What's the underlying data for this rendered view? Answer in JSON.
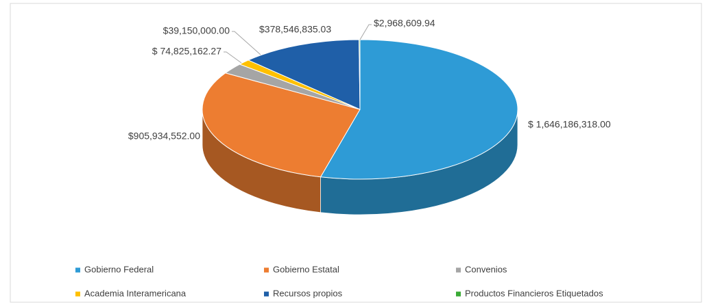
{
  "chart_data": {
    "type": "pie",
    "categories": [
      "Gobierno Federal",
      "Gobierno Estatal",
      "Convenios",
      "Academia Interamericana",
      "Recursos propios",
      "Productos Financieros Etiquetados"
    ],
    "values": [
      1646186318.0,
      905934552.0,
      74825162.27,
      39150000.0,
      378546835.03,
      2968609.94
    ],
    "value_labels": [
      "$ 1,646,186,318.00",
      "$905,934,552.00",
      "$ 74,825,162.27",
      "$39,150,000.00",
      "$378,546,835.03",
      "$2,968,609.94"
    ],
    "colors": [
      "#2e9bd6",
      "#ed7d31",
      "#a5a5a5",
      "#ffc000",
      "#1f5fa8",
      "#3aaa35"
    ],
    "legend": "bottom"
  }
}
